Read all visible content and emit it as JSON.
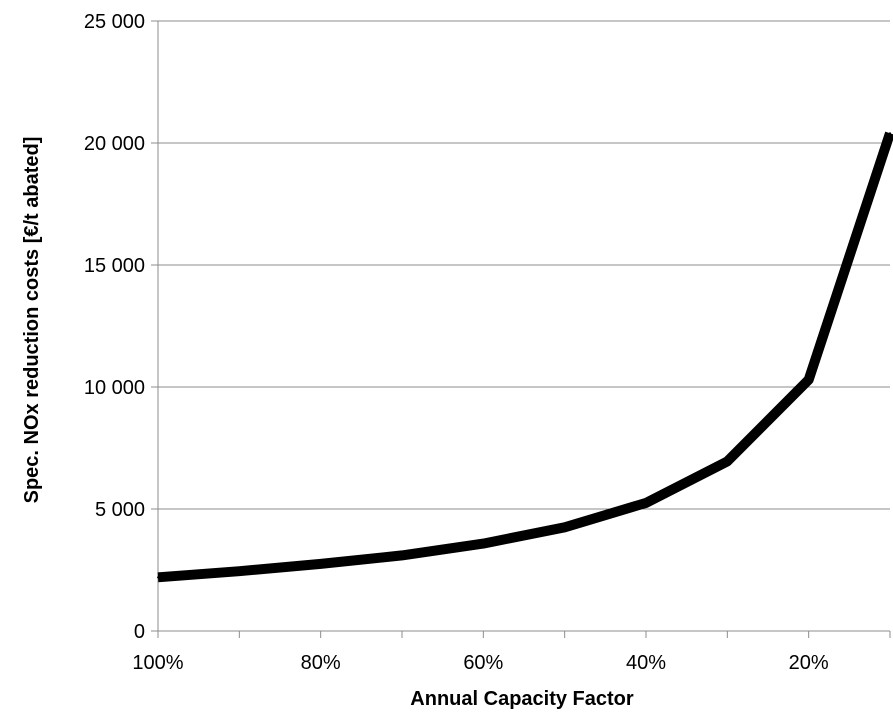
{
  "chart_data": {
    "type": "line",
    "title": "",
    "xlabel": "Annual Capacity Factor",
    "ylabel": "Spec. NOx reduction costs [€/t abated]",
    "x_axis_reversed": true,
    "xlim": [
      100,
      10
    ],
    "ylim": [
      0,
      25000
    ],
    "x_ticks": [
      100,
      90,
      80,
      70,
      60,
      50,
      40,
      30,
      20,
      10
    ],
    "x_tick_labels": [
      {
        "value": 100,
        "label": "100%"
      },
      {
        "value": 80,
        "label": "80%"
      },
      {
        "value": 60,
        "label": "60%"
      },
      {
        "value": 40,
        "label": "40%"
      },
      {
        "value": 20,
        "label": "20%"
      }
    ],
    "y_tick_labels": [
      {
        "value": 0,
        "label": "0"
      },
      {
        "value": 5000,
        "label": "5 000"
      },
      {
        "value": 10000,
        "label": "10 000"
      },
      {
        "value": 15000,
        "label": "15 000"
      },
      {
        "value": 20000,
        "label": "20 000"
      },
      {
        "value": 25000,
        "label": "25 000"
      }
    ],
    "grid": "horizontal",
    "legend": "none",
    "series": [
      {
        "color": "#000000",
        "x": [
          100,
          90,
          80,
          70,
          60,
          50,
          40,
          30,
          20,
          10
        ],
        "values": [
          2200,
          2450,
          2750,
          3100,
          3580,
          4250,
          5250,
          6950,
          10300,
          20400
        ]
      }
    ]
  }
}
